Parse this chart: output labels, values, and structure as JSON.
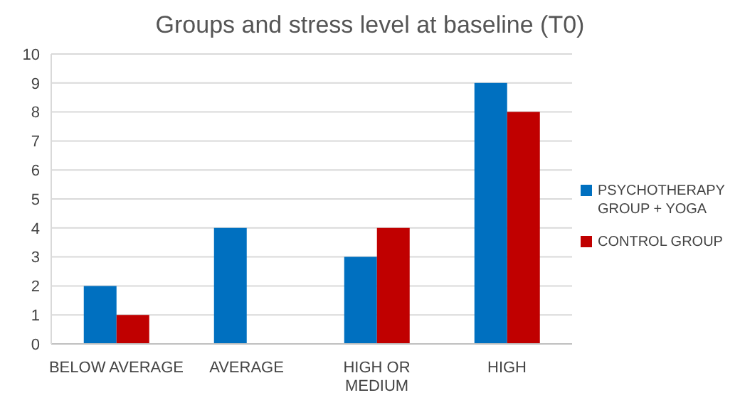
{
  "chart_data": {
    "type": "bar",
    "title": "Groups and stress level at baseline (T0)",
    "categories": [
      "BELOW AVERAGE",
      "AVERAGE",
      "HIGH OR MEDIUM",
      "HIGH"
    ],
    "series": [
      {
        "name": "PSYCHOTHERAPY GROUP + YOGA",
        "color": "#0070c0",
        "values": [
          2,
          4,
          3,
          9
        ]
      },
      {
        "name": "CONTROL GROUP",
        "color": "#c00000",
        "values": [
          1,
          0,
          4,
          8
        ]
      }
    ],
    "ylim": [
      0,
      10
    ],
    "yticks": [
      0,
      1,
      2,
      3,
      4,
      5,
      6,
      7,
      8,
      9,
      10
    ],
    "grid": "y",
    "legend": "right"
  }
}
